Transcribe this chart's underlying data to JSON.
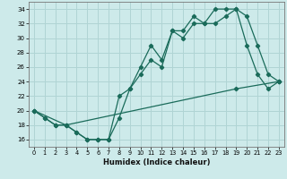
{
  "xlabel": "Humidex (Indice chaleur)",
  "bg_color": "#cdeaea",
  "grid_color": "#b0d4d4",
  "line_color": "#1a6b5a",
  "xlim": [
    -0.5,
    23.5
  ],
  "ylim": [
    15,
    35
  ],
  "xticks": [
    0,
    1,
    2,
    3,
    4,
    5,
    6,
    7,
    8,
    9,
    10,
    11,
    12,
    13,
    14,
    15,
    16,
    17,
    18,
    19,
    20,
    21,
    22,
    23
  ],
  "yticks": [
    16,
    18,
    20,
    22,
    24,
    26,
    28,
    30,
    32,
    34
  ],
  "line1_x": [
    0,
    1,
    2,
    3,
    4,
    5,
    6,
    7,
    8,
    9,
    10,
    11,
    12,
    13,
    14,
    15,
    16,
    17,
    18,
    19,
    20,
    21,
    22,
    23
  ],
  "line1_y": [
    20,
    19,
    18,
    18,
    17,
    16,
    16,
    16,
    19,
    23,
    25,
    27,
    26,
    31,
    31,
    33,
    32,
    34,
    34,
    34,
    29,
    25,
    23,
    24
  ],
  "line2_x": [
    0,
    1,
    2,
    3,
    4,
    5,
    6,
    7,
    8,
    9,
    10,
    11,
    12,
    13,
    14,
    15,
    16,
    17,
    18,
    19,
    20,
    21,
    22,
    23
  ],
  "line2_y": [
    20,
    19,
    18,
    18,
    17,
    16,
    16,
    16,
    22,
    23,
    26,
    29,
    27,
    31,
    30,
    32,
    32,
    32,
    33,
    34,
    33,
    29,
    25,
    24
  ],
  "line3_x": [
    0,
    3,
    19,
    23
  ],
  "line3_y": [
    20,
    18,
    23,
    24
  ]
}
